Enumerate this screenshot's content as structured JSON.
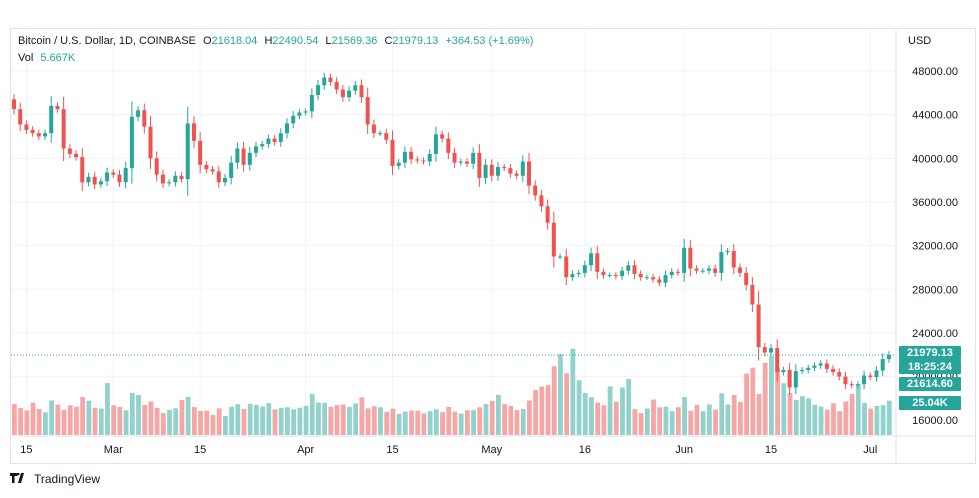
{
  "legend": {
    "symbol": "Bitcoin / U.S. Dollar, 1D, COINBASE",
    "open_label": "O",
    "open": "21618.04",
    "high_label": "H",
    "high": "22490.54",
    "low_label": "L",
    "low": "21569.36",
    "close_label": "C",
    "close": "21979.13",
    "change": "+364.53 (+1.69%)",
    "vol_label": "Vol",
    "vol": "5.667K"
  },
  "price_axis": {
    "currency": "USD",
    "last_price": "21979.13",
    "countdown": "18:25:24",
    "prev_price": "21614.60",
    "volume_tag": "25.04K"
  },
  "branding": {
    "name": "TradingView"
  },
  "colors": {
    "up": "#26a69a",
    "down": "#ef5350",
    "up_vol": "#92d2cc",
    "down_vol": "#f5a6a5",
    "grid": "#f0f3fa"
  },
  "chart_data": {
    "type": "candlestick",
    "title": "Bitcoin / U.S. Dollar, 1D, COINBASE",
    "ylim": [
      16000,
      48000
    ],
    "yticks": [
      16000,
      20000,
      24000,
      28000,
      32000,
      36000,
      40000,
      44000,
      48000
    ],
    "ytick_labels": [
      "16000.00",
      "20000.00",
      "24000.00",
      "28000.00",
      "32000.00",
      "36000.00",
      "40000.00",
      "44000.00",
      "48000.00"
    ],
    "xticks": [
      {
        "label": "15",
        "index": 2
      },
      {
        "label": "Mar",
        "index": 16
      },
      {
        "label": "15",
        "index": 30
      },
      {
        "label": "Apr",
        "index": 47
      },
      {
        "label": "15",
        "index": 61
      },
      {
        "label": "May",
        "index": 77
      },
      {
        "label": "16",
        "index": 92
      },
      {
        "label": "Jun",
        "index": 108
      },
      {
        "label": "15",
        "index": 122
      },
      {
        "label": "Jul",
        "index": 138
      }
    ],
    "current_price": 21979.13,
    "close": [
      44500,
      43100,
      42600,
      42300,
      42000,
      42300,
      44800,
      44500,
      40900,
      40400,
      40100,
      37800,
      38300,
      37600,
      37900,
      38700,
      38500,
      37800,
      39100,
      43800,
      44400,
      42900,
      40000,
      38500,
      37700,
      37800,
      38400,
      38100,
      43200,
      41600,
      39400,
      39000,
      38800,
      37800,
      38200,
      39600,
      40900,
      39400,
      40500,
      41100,
      41300,
      41800,
      41500,
      42300,
      43200,
      43900,
      44200,
      44300,
      45800,
      46700,
      47400,
      47000,
      46300,
      45600,
      46200,
      46700,
      45600,
      43100,
      42300,
      42300,
      41700,
      39300,
      39600,
      40600,
      39900,
      39800,
      39700,
      40400,
      42200,
      41800,
      40500,
      39600,
      39700,
      39500,
      40500,
      38200,
      39400,
      38400,
      39200,
      39100,
      38600,
      38400,
      39700,
      37500,
      36600,
      35600,
      34100,
      31000,
      31000,
      29100,
      29400,
      29500,
      30200,
      31300,
      29600,
      29300,
      29300,
      29200,
      29700,
      30200,
      29400,
      29100,
      29100,
      28900,
      28600,
      29300,
      29600,
      29500,
      31800,
      29900,
      29700,
      29700,
      29900,
      29500,
      31400,
      31500,
      30000,
      29500,
      28400,
      26600,
      22700,
      22200,
      22600,
      20400,
      20600,
      19000,
      20500,
      20600,
      20800,
      21000,
      21200,
      20700,
      20400,
      20000,
      19300,
      19200,
      19300,
      20100,
      19950,
      20550,
      21600,
      21979
    ],
    "volume": [
      15.8,
      13.8,
      12.6,
      16.6,
      13.3,
      11.6,
      17.7,
      15.6,
      12.8,
      15.2,
      14.5,
      19.5,
      17.6,
      13.9,
      13.6,
      26.6,
      15.2,
      14.4,
      12.7,
      21.6,
      20.5,
      15.4,
      17.2,
      13.9,
      11.2,
      12.9,
      13.7,
      17.9,
      19.5,
      14.3,
      12.3,
      12.5,
      10.2,
      13.7,
      9.8,
      14.5,
      15.8,
      13.4,
      16.0,
      15.5,
      14.6,
      16.4,
      13.2,
      13.8,
      14.2,
      13.2,
      14.0,
      15.0,
      21.0,
      16.7,
      16.5,
      14.4,
      15.3,
      15.6,
      14.4,
      16.2,
      19.3,
      13.7,
      14.8,
      14.2,
      11.9,
      13.5,
      10.8,
      12.0,
      12.5,
      12.5,
      11.1,
      12.2,
      13.2,
      11.7,
      14.4,
      12.0,
      11.0,
      12.7,
      12.7,
      14.2,
      15.9,
      17.5,
      20.6,
      15.8,
      14.9,
      12.8,
      13.3,
      17.7,
      23.1,
      24.8,
      25.6,
      35.3,
      41.4,
      31.6,
      44.2,
      28.1,
      21.6,
      19.4,
      16.6,
      15.2,
      24.9,
      17.1,
      24.4,
      28.7,
      13.3,
      11.2,
      13.6,
      18.2,
      14.2,
      14.5,
      12.2,
      14.3,
      19.4,
      12.4,
      15.5,
      12.2,
      15.7,
      13.1,
      21.4,
      15.7,
      20.5,
      16.9,
      31.5,
      34.5,
      21.1,
      37.0,
      40.4,
      34.3,
      26.5,
      21.5,
      18.0,
      19.9,
      18.8,
      15.5,
      14.6,
      13.0,
      16.3,
      12.2,
      17.2,
      21.1,
      26.0,
      16.4,
      13.5,
      14.9,
      15.3,
      17.6
    ]
  }
}
